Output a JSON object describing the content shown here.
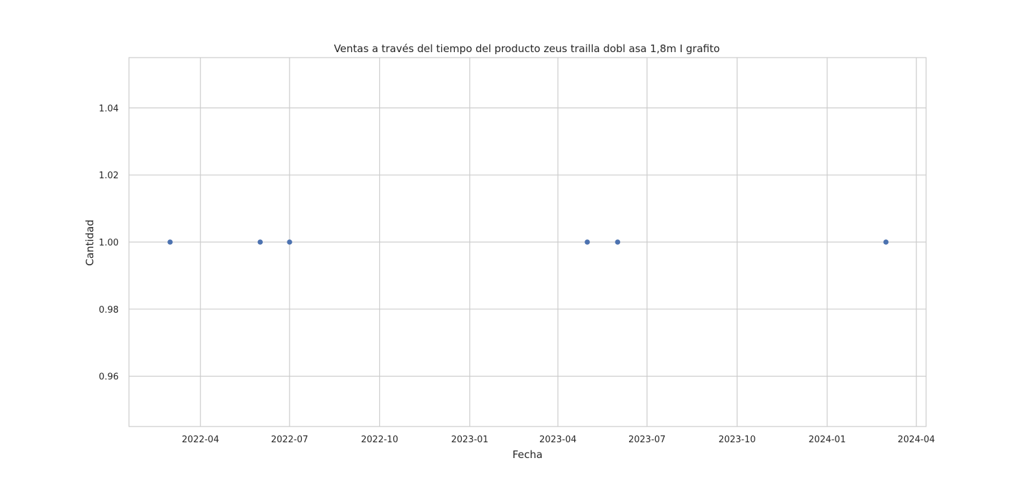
{
  "chart_data": {
    "type": "scatter",
    "title": "Ventas a través del tiempo del producto zeus trailla dobl asa 1,8m  I  grafito",
    "xlabel": "Fecha",
    "ylabel": "Cantidad",
    "x": [
      "2022-03-01",
      "2022-06-01",
      "2022-07-01",
      "2023-05-01",
      "2023-06-01",
      "2024-03-01"
    ],
    "y": [
      1,
      1,
      1,
      1,
      1,
      1
    ],
    "xlim": [
      "2022-01-18",
      "2024-04-11"
    ],
    "ylim": [
      0.945,
      1.055
    ],
    "x_ticks": [
      {
        "value": "2022-04-01",
        "label": "2022-04"
      },
      {
        "value": "2022-07-01",
        "label": "2022-07"
      },
      {
        "value": "2022-10-01",
        "label": "2022-10"
      },
      {
        "value": "2023-01-01",
        "label": "2023-01"
      },
      {
        "value": "2023-04-01",
        "label": "2023-04"
      },
      {
        "value": "2023-07-01",
        "label": "2023-07"
      },
      {
        "value": "2023-10-01",
        "label": "2023-10"
      },
      {
        "value": "2024-01-01",
        "label": "2024-01"
      },
      {
        "value": "2024-04-01",
        "label": "2024-04"
      }
    ],
    "y_ticks": [
      {
        "value": 0.96,
        "label": "0.96"
      },
      {
        "value": 0.98,
        "label": "0.98"
      },
      {
        "value": 1.0,
        "label": "1.00"
      },
      {
        "value": 1.02,
        "label": "1.02"
      },
      {
        "value": 1.04,
        "label": "1.04"
      }
    ],
    "grid": true,
    "marker_color": "#4c72b0",
    "grid_color": "#cccccc",
    "spine_color": "#cccccc"
  }
}
